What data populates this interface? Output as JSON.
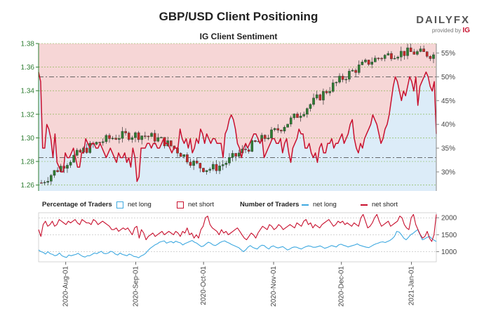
{
  "header": {
    "title": "GBP/USD Client Positioning",
    "brand_main": "DAILYFX",
    "brand_sub": "provided by",
    "brand_ig": "IG"
  },
  "chart_data": [
    {
      "type": "candlestick",
      "title": "IG Client Sentiment",
      "y_left_ticks": [
        "1.38",
        "1.36",
        "1.34",
        "1.32",
        "1.30",
        "1.28",
        "1.26"
      ],
      "y_left_range": [
        1.255,
        1.38
      ],
      "y_right_ticks": [
        "55%",
        "50%",
        "45%",
        "40%",
        "35%",
        "30%"
      ],
      "y_right_range": [
        26,
        57
      ],
      "x_ticks": [
        "2020-Aug-01",
        "2020-Sep-01",
        "2020-Oct-01",
        "2020-Nov-01",
        "2020-Dec-01",
        "2021-Jan-01"
      ],
      "x_range": [
        "2020-07-20",
        "2021-01-12"
      ],
      "ref_lines_pct": [
        50,
        33
      ],
      "series": [
        {
          "name": "net short %",
          "values": [
            51,
            49,
            35,
            35,
            40,
            39,
            37,
            33,
            38,
            32,
            31,
            30,
            30,
            34,
            33,
            33,
            34,
            35,
            33,
            31,
            31,
            34,
            34,
            37,
            36,
            35,
            36,
            36,
            35,
            35,
            36,
            35,
            34,
            33,
            34,
            35,
            34,
            33,
            32,
            34,
            33,
            33,
            34,
            32,
            33,
            31,
            35,
            33,
            28,
            29,
            35,
            35,
            35,
            36,
            36,
            35,
            36,
            36,
            35,
            35,
            36,
            37,
            36,
            36,
            35,
            34,
            35,
            35,
            35,
            39,
            37,
            36,
            37,
            35,
            37,
            34,
            35,
            37,
            36,
            39,
            38,
            36,
            38,
            37,
            36,
            37,
            37,
            36,
            36,
            36,
            33,
            38,
            39,
            41,
            42,
            41,
            39,
            36,
            35,
            33,
            35,
            36,
            35,
            36,
            37,
            38,
            38,
            37,
            36,
            37,
            33,
            34,
            35,
            36,
            37,
            37,
            36,
            36,
            37,
            34,
            36,
            37,
            34,
            32,
            35,
            36,
            37,
            39,
            38,
            38,
            35,
            35,
            36,
            34,
            33,
            34,
            32,
            35,
            36,
            34,
            34,
            36,
            36,
            37,
            35,
            36,
            36,
            37,
            38,
            36,
            37,
            38,
            40,
            41,
            37,
            35,
            34,
            36,
            35,
            37,
            38,
            39,
            40,
            42,
            41,
            40,
            38,
            36,
            37,
            39,
            40,
            42,
            45,
            48,
            50,
            49,
            47,
            45,
            47,
            46,
            48,
            50,
            49,
            47,
            50,
            44,
            48,
            49,
            50,
            51,
            50,
            48,
            47,
            49,
            38
          ]
        }
      ]
    },
    {
      "type": "line",
      "title": "Number of Traders",
      "y_ticks": [
        "2000",
        "1500",
        "1000"
      ],
      "y_range": [
        700,
        2150
      ],
      "series": [
        {
          "name": "net long",
          "values": [
            1050,
            1000,
            980,
            930,
            1000,
            940,
            920,
            880,
            900,
            960,
            880,
            850,
            830,
            900,
            880,
            900,
            920,
            950,
            900,
            860,
            840,
            880,
            880,
            920,
            960,
            940,
            980,
            1010,
            950,
            940,
            960,
            1010,
            990,
            930,
            900,
            960,
            920,
            900,
            880,
            930,
            900,
            860,
            850,
            820,
            870,
            900,
            950,
            1030,
            1100,
            1150,
            1200,
            1230,
            1280,
            1300,
            1320,
            1250,
            1280,
            1300,
            1260,
            1310,
            1280,
            1260,
            1200,
            1240,
            1270,
            1300,
            1330,
            1280,
            1250,
            1200,
            1150,
            1170,
            1230,
            1280,
            1250,
            1200,
            1180,
            1220,
            1270,
            1300,
            1320,
            1280,
            1250,
            1210,
            1180,
            1150,
            1120,
            1060,
            1000,
            1050,
            1130,
            1180,
            1130,
            1100,
            1080,
            1150,
            1190,
            1180,
            1120,
            1080,
            1150,
            1170,
            1130,
            1110,
            1130,
            1150,
            1100,
            1050,
            1080,
            1120,
            1140,
            1130,
            1100,
            1080,
            1120,
            1150,
            1170,
            1160,
            1130,
            1130,
            1150,
            1170,
            1140,
            1100,
            1120,
            1150,
            1180,
            1160,
            1140,
            1200,
            1220,
            1190,
            1170,
            1140,
            1160,
            1180,
            1200,
            1230,
            1190,
            1170,
            1150,
            1130,
            1120,
            1160,
            1200,
            1230,
            1250,
            1280,
            1290,
            1270,
            1300,
            1330,
            1380,
            1450,
            1600,
            1580,
            1500,
            1400,
            1350,
            1420,
            1500,
            1540,
            1600,
            1650,
            1500,
            1350,
            1380,
            1420,
            1450,
            1390,
            1340,
            1300
          ]
        },
        {
          "name": "net short",
          "values": [
            1650,
            1450,
            1800,
            1900,
            1750,
            1800,
            1900,
            1750,
            1800,
            1950,
            1900,
            1850,
            1800,
            1900,
            1850,
            1900,
            1950,
            1850,
            1800,
            1950,
            1900,
            1850,
            1850,
            1800,
            1950,
            1900,
            1800,
            1850,
            1900,
            1850,
            1800,
            1750,
            1650,
            1650,
            1700,
            1600,
            1650,
            1700,
            1650,
            1700,
            1600,
            1500,
            1700,
            1750,
            1400,
            1650,
            1550,
            1350,
            1450,
            1500,
            1550,
            1450,
            1500,
            1550,
            1600,
            1500,
            1550,
            1600,
            1550,
            1500,
            1600,
            1550,
            1450,
            1600,
            1550,
            1700,
            1500,
            1550,
            1400,
            1500,
            1400,
            1650,
            1750,
            2000,
            2050,
            1800,
            1700,
            1650,
            1600,
            1500,
            1650,
            1550,
            1600,
            1500,
            1550,
            1600,
            1650,
            1700,
            1600,
            1500,
            1400,
            1350,
            1450,
            1550,
            1500,
            1400,
            1550,
            1650,
            1750,
            1700,
            1650,
            1800,
            1750,
            1650,
            1700,
            1800,
            1750,
            1650,
            1700,
            1750,
            1800,
            1750,
            1700,
            1850,
            1800,
            1750,
            1900,
            1950,
            1800,
            1850,
            1700,
            1800,
            1750,
            1700,
            1800,
            1850,
            1900,
            1950,
            1850,
            1750,
            1800,
            1900,
            1850,
            1900,
            1800,
            1850,
            1800,
            1750,
            1850,
            1800,
            1750,
            2000,
            2100,
            1900,
            1700,
            1750,
            1850,
            2000,
            2100,
            1900,
            1750,
            1800,
            1850,
            1900,
            1750,
            1800,
            1850,
            1900,
            2050,
            2000,
            1800,
            1700,
            1650,
            2000,
            2100,
            1800,
            1650,
            1500,
            1400,
            1450,
            1600,
            1400,
            1300,
            1500,
            2100
          ]
        }
      ]
    }
  ],
  "legend": {
    "pct_label": "Percentage of Traders",
    "pct_long": "net long",
    "pct_short": "net short",
    "num_label": "Number of Traders",
    "num_long": "net long",
    "num_short": "net short"
  },
  "colors": {
    "long": "#3fa9e0",
    "short": "#c8102e",
    "long_fill": "#dcecf8",
    "short_fill": "#f6d6d6",
    "candle_up": "#2e7d32",
    "candle_down": "#c62828",
    "axis": "#2e7d32"
  }
}
